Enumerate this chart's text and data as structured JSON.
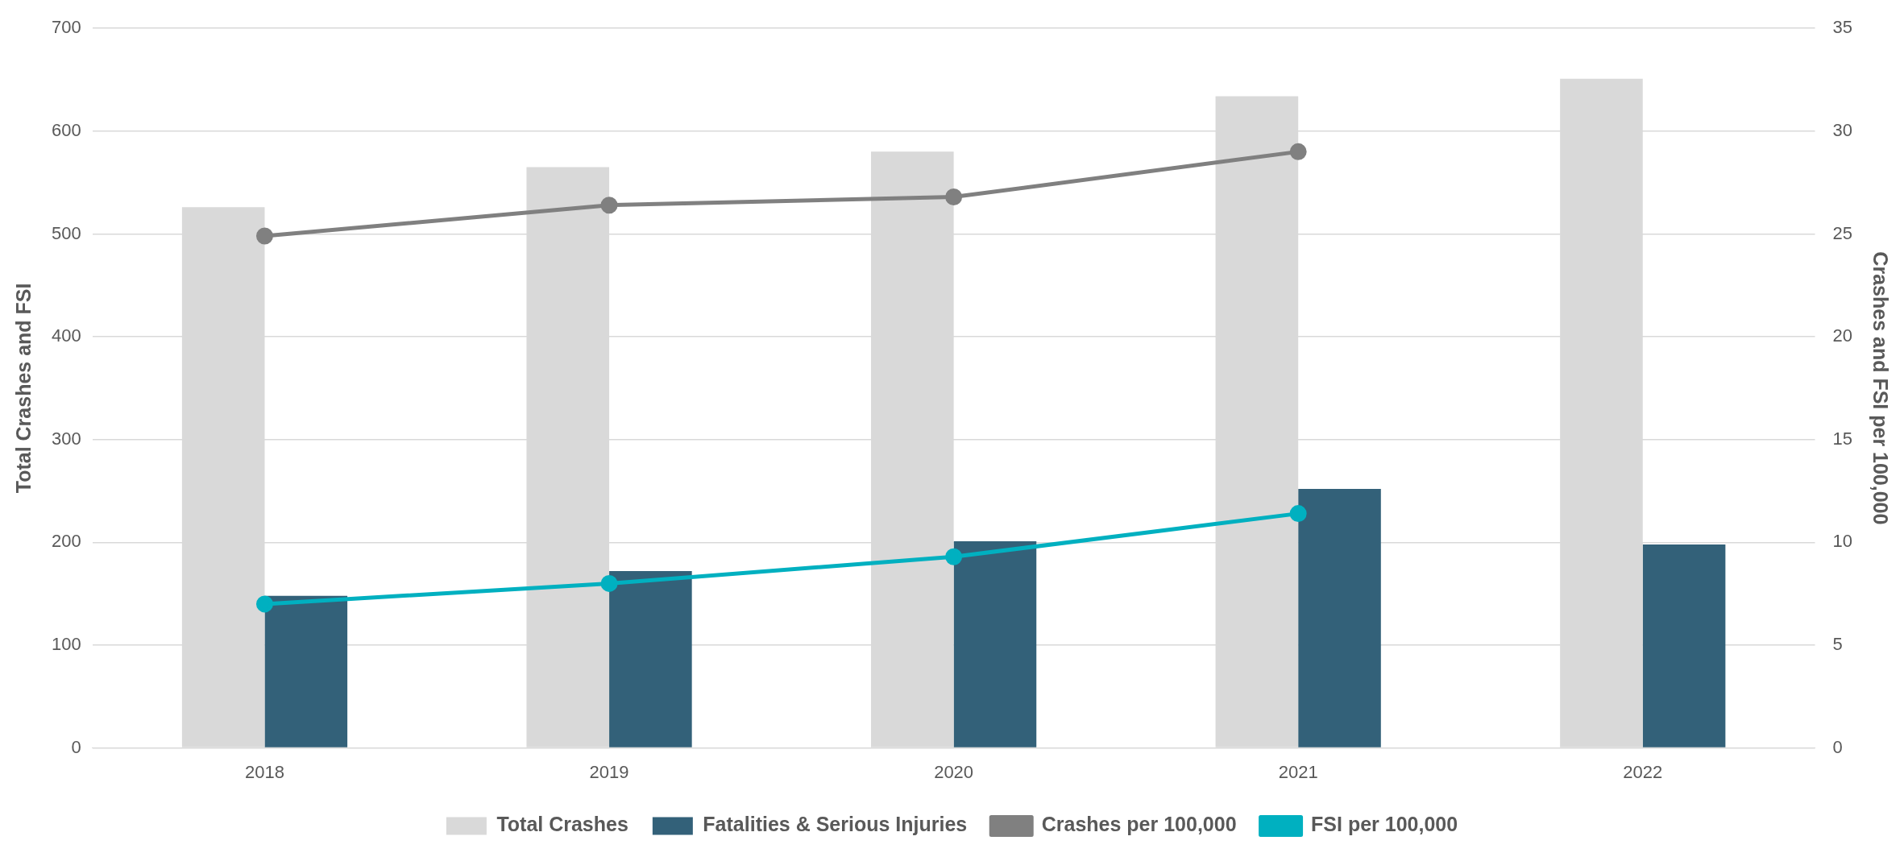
{
  "chart_data": {
    "type": "bar",
    "categories": [
      "2018",
      "2019",
      "2020",
      "2021",
      "2022"
    ],
    "ylabel": "Total Crashes and FSI",
    "y2label": "Crashes and FSI per 100,000",
    "ylim": [
      0,
      700
    ],
    "yticks": [
      0,
      100,
      200,
      300,
      400,
      500,
      600,
      700
    ],
    "y2lim": [
      0,
      35
    ],
    "y2ticks": [
      0,
      5,
      10,
      15,
      20,
      25,
      30,
      35
    ],
    "grid": "y",
    "legend": "bottom",
    "marker": "circle",
    "series": [
      {
        "name": "Total Crashes",
        "color": "#d9d9d9",
        "values": [
          526,
          565,
          580,
          634,
          651
        ]
      },
      {
        "name": "Fatalities & Serious Injuries",
        "color": "#336179",
        "values": [
          148,
          172,
          201,
          252,
          198
        ]
      },
      {
        "name": "Crashes per 100,000",
        "type": "line",
        "axis": "y2",
        "color": "#808080",
        "values": [
          24.9,
          26.4,
          26.8,
          29.0,
          null
        ]
      },
      {
        "name": "FSI per 100,000",
        "type": "line",
        "axis": "y2",
        "color": "#00b0c0",
        "values": [
          7.0,
          8.0,
          9.3,
          11.4,
          null
        ]
      }
    ]
  }
}
